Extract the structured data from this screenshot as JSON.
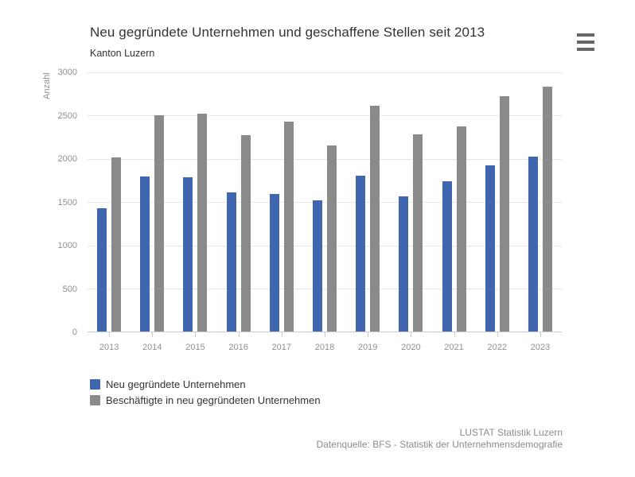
{
  "header": {
    "title": "Neu gegründete Unternehmen und geschaffene Stellen seit 2013",
    "subtitle": "Kanton Luzern",
    "menu_icon": "hamburger-menu"
  },
  "chart_data": {
    "type": "bar",
    "title": "Neu gegründete Unternehmen und geschaffene Stellen seit 2013",
    "subtitle": "Kanton Luzern",
    "xlabel": "",
    "ylabel": "Anzahl",
    "ylim": [
      0,
      3000
    ],
    "yticks": [
      0,
      500,
      1000,
      1500,
      2000,
      2500,
      3000
    ],
    "grid": true,
    "legend_position": "bottom-left",
    "categories": [
      "2013",
      "2014",
      "2015",
      "2016",
      "2017",
      "2018",
      "2019",
      "2020",
      "2021",
      "2022",
      "2023"
    ],
    "series": [
      {
        "name": "Neu gegründete Unternehmen",
        "color": "#3F66AE",
        "values": [
          1430,
          1795,
          1790,
          1610,
          1590,
          1520,
          1805,
          1565,
          1740,
          1920,
          2025
        ]
      },
      {
        "name": "Beschäftigte in neu gegründeten Unternehmen",
        "color": "#8A8A8A",
        "values": [
          2020,
          2505,
          2520,
          2275,
          2430,
          2155,
          2610,
          2280,
          2375,
          2720,
          2835
        ]
      }
    ]
  },
  "colors": {
    "gridline": "#e6e6e6",
    "axis_line": "#cccccc",
    "axis_label": "#909090",
    "title": "#333333",
    "credits": "#8c8c8c"
  },
  "footer": {
    "credit": "LUSTAT Statistik Luzern",
    "source": "Datenquelle: BFS - Statistik der Unternehmensdemografie"
  }
}
